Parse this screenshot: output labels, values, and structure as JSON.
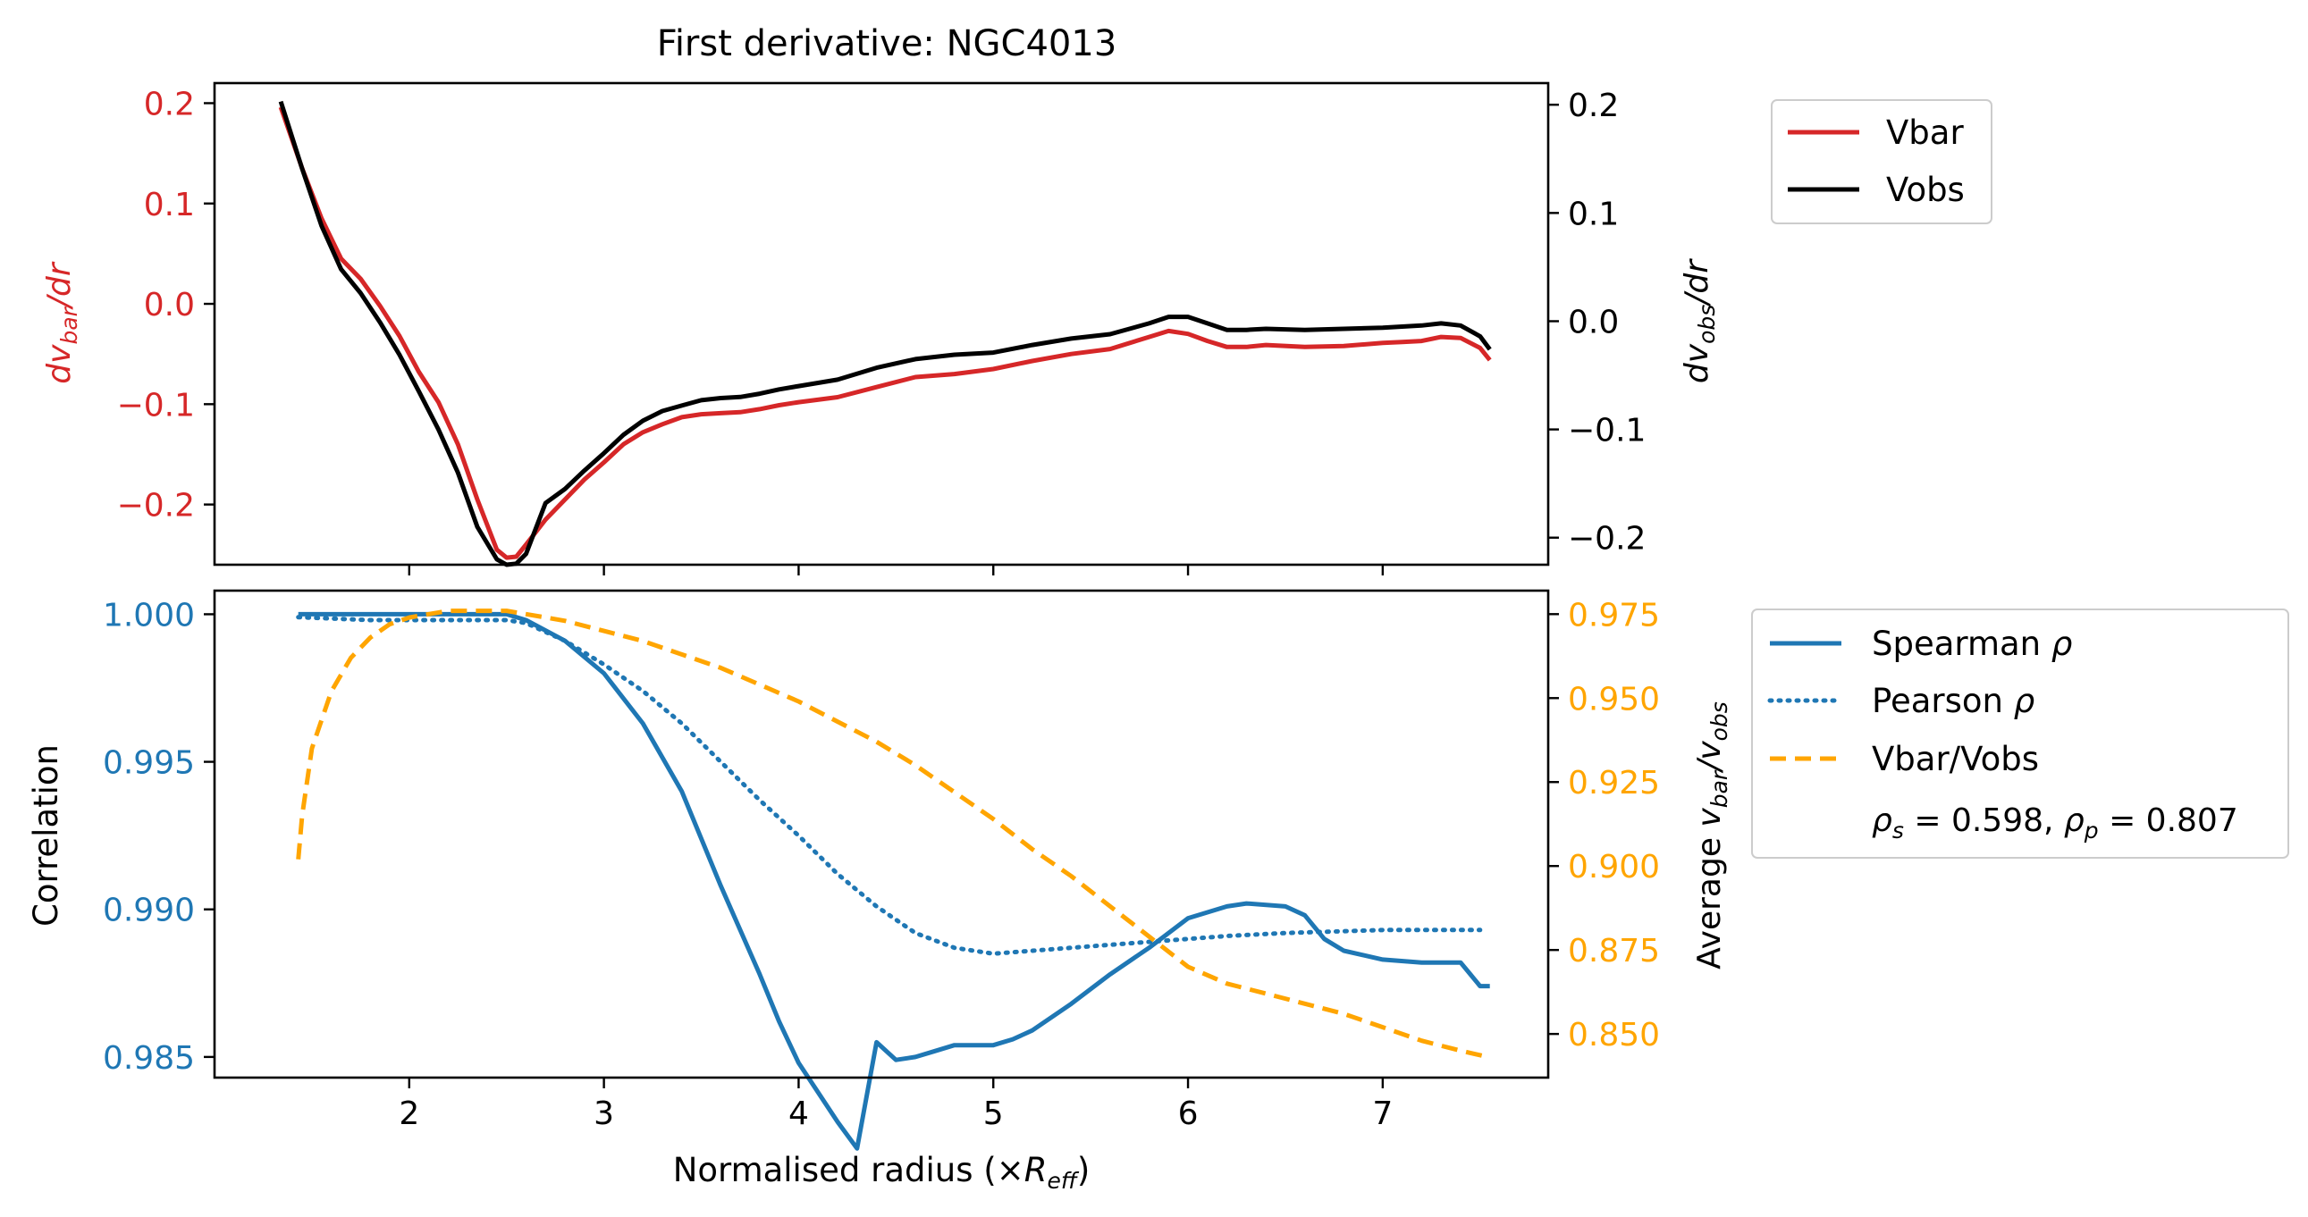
{
  "figure": {
    "title": "First derivative: NGC4013",
    "xlabel": "Normalised radius (×R_eff)",
    "colors": {
      "vbar": "#d62728",
      "vobs": "#000000",
      "spearman": "#1f77b4",
      "pearson": "#1f77b4",
      "ratio": "#ffa500"
    }
  },
  "chart_data": [
    {
      "type": "line",
      "title": "First derivative: NGC4013",
      "xlim": [
        1.0,
        7.85
      ],
      "xticks": [
        2,
        3,
        4,
        5,
        6,
        7
      ],
      "left_axis": {
        "label": "dv_bar/dr",
        "ylim": [
          -0.26,
          0.22
        ],
        "ticks": [
          -0.2,
          -0.1,
          0.0,
          0.1,
          0.2
        ],
        "tick_labels": [
          "−0.2",
          "−0.1",
          "0.0",
          "0.1",
          "0.2"
        ],
        "color": "#d62728"
      },
      "right_axis": {
        "label": "dv_obs/dr",
        "ylim": [
          -0.225,
          0.22
        ],
        "ticks": [
          -0.2,
          -0.1,
          0.0,
          0.1,
          0.2
        ],
        "tick_labels": [
          "−0.2",
          "−0.1",
          "0.0",
          "0.1",
          "0.2"
        ],
        "color": "#000000"
      },
      "legend": {
        "position": "outside-top-right",
        "entries": [
          "Vbar",
          "Vobs"
        ]
      },
      "series": [
        {
          "name": "Vbar",
          "axis": "left",
          "color": "#d62728",
          "x": [
            1.34,
            1.45,
            1.55,
            1.65,
            1.75,
            1.85,
            1.95,
            2.05,
            2.15,
            2.25,
            2.35,
            2.45,
            2.5,
            2.55,
            2.6,
            2.7,
            2.8,
            2.9,
            3.0,
            3.1,
            3.2,
            3.3,
            3.4,
            3.5,
            3.6,
            3.7,
            3.8,
            3.9,
            4.0,
            4.2,
            4.4,
            4.6,
            4.8,
            5.0,
            5.2,
            5.4,
            5.6,
            5.8,
            5.9,
            6.0,
            6.1,
            6.2,
            6.3,
            6.4,
            6.6,
            6.8,
            7.0,
            7.1,
            7.2,
            7.3,
            7.4,
            7.5,
            7.55
          ],
          "values": [
            0.196,
            0.135,
            0.085,
            0.045,
            0.025,
            -0.002,
            -0.032,
            -0.068,
            -0.098,
            -0.14,
            -0.195,
            -0.245,
            -0.253,
            -0.252,
            -0.24,
            -0.215,
            -0.195,
            -0.175,
            -0.158,
            -0.14,
            -0.128,
            -0.12,
            -0.113,
            -0.11,
            -0.109,
            -0.108,
            -0.105,
            -0.101,
            -0.098,
            -0.093,
            -0.083,
            -0.073,
            -0.07,
            -0.065,
            -0.057,
            -0.05,
            -0.045,
            -0.033,
            -0.027,
            -0.03,
            -0.037,
            -0.043,
            -0.043,
            -0.041,
            -0.043,
            -0.042,
            -0.039,
            -0.038,
            -0.037,
            -0.033,
            -0.034,
            -0.044,
            -0.056
          ]
        },
        {
          "name": "Vobs",
          "axis": "right",
          "color": "#000000",
          "x": [
            1.34,
            1.45,
            1.55,
            1.65,
            1.75,
            1.85,
            1.95,
            2.05,
            2.15,
            2.25,
            2.35,
            2.45,
            2.5,
            2.55,
            2.6,
            2.7,
            2.8,
            2.9,
            3.0,
            3.1,
            3.2,
            3.3,
            3.4,
            3.5,
            3.6,
            3.7,
            3.8,
            3.9,
            4.0,
            4.2,
            4.4,
            4.6,
            4.8,
            5.0,
            5.2,
            5.4,
            5.6,
            5.8,
            5.9,
            6.0,
            6.1,
            6.2,
            6.3,
            6.4,
            6.6,
            6.8,
            7.0,
            7.1,
            7.2,
            7.3,
            7.4,
            7.5,
            7.55
          ],
          "values": [
            0.203,
            0.141,
            0.088,
            0.048,
            0.026,
            -0.001,
            -0.031,
            -0.065,
            -0.1,
            -0.14,
            -0.19,
            -0.22,
            -0.225,
            -0.224,
            -0.215,
            -0.168,
            -0.155,
            -0.138,
            -0.122,
            -0.105,
            -0.092,
            -0.083,
            -0.078,
            -0.073,
            -0.071,
            -0.07,
            -0.067,
            -0.063,
            -0.06,
            -0.054,
            -0.043,
            -0.035,
            -0.031,
            -0.029,
            -0.022,
            -0.016,
            -0.012,
            -0.002,
            0.004,
            0.004,
            -0.002,
            -0.008,
            -0.008,
            -0.007,
            -0.008,
            -0.007,
            -0.006,
            -0.005,
            -0.004,
            -0.002,
            -0.004,
            -0.014,
            -0.026
          ]
        }
      ]
    },
    {
      "type": "line",
      "xlabel": "Normalised radius (×R_eff)",
      "xlim": [
        1.0,
        7.85
      ],
      "xticks": [
        2,
        3,
        4,
        5,
        6,
        7
      ],
      "left_axis": {
        "label": "Correlation",
        "ylim": [
          0.9843,
          1.0008
        ],
        "ticks": [
          0.985,
          0.99,
          0.995,
          1.0
        ],
        "tick_labels": [
          "0.985",
          "0.990",
          "0.995",
          "1.000"
        ],
        "color": "#1f77b4"
      },
      "right_axis": {
        "label": "Average v_bar/v_obs",
        "ylim": [
          0.837,
          0.982
        ],
        "ticks": [
          0.85,
          0.875,
          0.9,
          0.925,
          0.95,
          0.975
        ],
        "tick_labels": [
          "0.850",
          "0.875",
          "0.900",
          "0.925",
          "0.950",
          "0.975"
        ],
        "color": "#ffa500"
      },
      "legend": {
        "position": "outside-right",
        "entries": [
          "Spearman ρ",
          "Pearson ρ",
          "Vbar/Vobs"
        ],
        "annotation": "ρs = 0.598, ρp = 0.807"
      },
      "series": [
        {
          "name": "Spearman ρ",
          "axis": "left",
          "style": "solid",
          "color": "#1f77b4",
          "x": [
            1.43,
            1.8,
            2.2,
            2.5,
            2.6,
            2.8,
            3.0,
            3.2,
            3.4,
            3.6,
            3.8,
            3.9,
            4.0,
            4.1,
            4.2,
            4.3,
            4.4,
            4.5,
            4.6,
            4.7,
            4.8,
            4.9,
            5.0,
            5.1,
            5.2,
            5.4,
            5.6,
            5.8,
            6.0,
            6.2,
            6.3,
            6.5,
            6.6,
            6.7,
            6.8,
            7.0,
            7.2,
            7.3,
            7.4,
            7.45,
            7.5,
            7.55
          ],
          "values": [
            1.0,
            1.0,
            1.0,
            1.0,
            0.9998,
            0.9991,
            0.998,
            0.9963,
            0.994,
            0.9908,
            0.9878,
            0.9862,
            0.9848,
            0.9838,
            0.9828,
            0.9819,
            0.9855,
            0.9849,
            0.985,
            0.9852,
            0.9854,
            0.9854,
            0.9854,
            0.9856,
            0.9859,
            0.9868,
            0.9878,
            0.9887,
            0.9897,
            0.9901,
            0.9902,
            0.9901,
            0.9898,
            0.989,
            0.9886,
            0.9883,
            0.9882,
            0.9882,
            0.9882,
            0.9878,
            0.9874,
            0.9874
          ]
        },
        {
          "name": "Pearson ρ",
          "axis": "left",
          "style": "dotted",
          "color": "#1f77b4",
          "x": [
            1.43,
            1.8,
            2.2,
            2.5,
            2.6,
            2.8,
            3.0,
            3.2,
            3.4,
            3.6,
            3.8,
            4.0,
            4.2,
            4.4,
            4.6,
            4.8,
            5.0,
            5.2,
            5.4,
            5.6,
            5.8,
            6.0,
            6.2,
            6.5,
            7.0,
            7.5
          ],
          "values": [
            0.9999,
            0.9998,
            0.9998,
            0.9998,
            0.9997,
            0.9991,
            0.9983,
            0.9974,
            0.9963,
            0.995,
            0.9937,
            0.9925,
            0.9912,
            0.9901,
            0.9892,
            0.9887,
            0.9885,
            0.9886,
            0.9887,
            0.9888,
            0.9889,
            0.989,
            0.9891,
            0.9892,
            0.9893,
            0.9893
          ]
        },
        {
          "name": "Vbar/Vobs",
          "axis": "right",
          "style": "dashed",
          "color": "#ffa500",
          "x": [
            1.43,
            1.45,
            1.5,
            1.6,
            1.7,
            1.8,
            1.9,
            2.0,
            2.1,
            2.2,
            2.3,
            2.4,
            2.5,
            2.6,
            2.8,
            3.0,
            3.2,
            3.4,
            3.6,
            3.8,
            4.0,
            4.2,
            4.4,
            4.6,
            4.8,
            5.0,
            5.2,
            5.4,
            5.6,
            5.8,
            6.0,
            6.2,
            6.4,
            6.6,
            6.8,
            7.0,
            7.2,
            7.4,
            7.55
          ],
          "values": [
            0.902,
            0.915,
            0.935,
            0.952,
            0.962,
            0.968,
            0.972,
            0.974,
            0.975,
            0.976,
            0.976,
            0.976,
            0.976,
            0.975,
            0.973,
            0.97,
            0.967,
            0.963,
            0.959,
            0.954,
            0.949,
            0.943,
            0.937,
            0.93,
            0.922,
            0.914,
            0.905,
            0.897,
            0.888,
            0.879,
            0.87,
            0.865,
            0.862,
            0.859,
            0.856,
            0.852,
            0.848,
            0.845,
            0.843
          ]
        }
      ]
    }
  ]
}
